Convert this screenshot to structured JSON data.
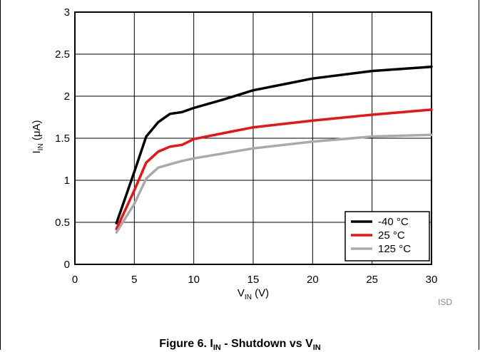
{
  "chart_data": {
    "type": "line",
    "xlabel": "V",
    "xlabel_sub": "IN",
    "xlabel_unit": " (V)",
    "ylabel": "I",
    "ylabel_sub": "IN",
    "ylabel_unit": " (μA)",
    "xlim": [
      0,
      30
    ],
    "ylim": [
      0,
      3
    ],
    "xticks": [
      0,
      5,
      10,
      15,
      20,
      25,
      30
    ],
    "yticks": [
      0,
      0.5,
      1,
      1.5,
      2,
      2.5,
      3
    ],
    "ytick_labels": [
      "0",
      "0.5",
      "1",
      "1.5",
      "2",
      "2.5",
      "3"
    ],
    "grid": true,
    "legend_position": "bottom-right",
    "series": [
      {
        "name": "-40 °C",
        "color": "#000000",
        "x": [
          3.5,
          5,
          6,
          7,
          8,
          9,
          10,
          12.5,
          15,
          17.5,
          20,
          25,
          30
        ],
        "y": [
          0.49,
          1.1,
          1.52,
          1.69,
          1.79,
          1.81,
          1.86,
          1.96,
          2.07,
          2.14,
          2.21,
          2.3,
          2.35
        ]
      },
      {
        "name": "25 °C",
        "color": "#ee1111",
        "x": [
          3.5,
          5,
          6,
          7,
          8,
          9,
          10,
          12.5,
          15,
          20,
          25,
          30
        ],
        "y": [
          0.42,
          0.88,
          1.21,
          1.34,
          1.4,
          1.42,
          1.49,
          1.56,
          1.63,
          1.71,
          1.78,
          1.84
        ]
      },
      {
        "name": "125 °C",
        "color": "#aaaaaa",
        "x": [
          3.5,
          5,
          6,
          7,
          8,
          9,
          10,
          15,
          20,
          25,
          30
        ],
        "y": [
          0.38,
          0.72,
          1.02,
          1.15,
          1.19,
          1.23,
          1.26,
          1.38,
          1.46,
          1.52,
          1.54
        ]
      }
    ]
  },
  "watermark": "ISD",
  "caption": {
    "prefix": "Figure 6. I",
    "sub1": "IN",
    "middle": " - Shutdown vs V",
    "sub2": "IN"
  }
}
